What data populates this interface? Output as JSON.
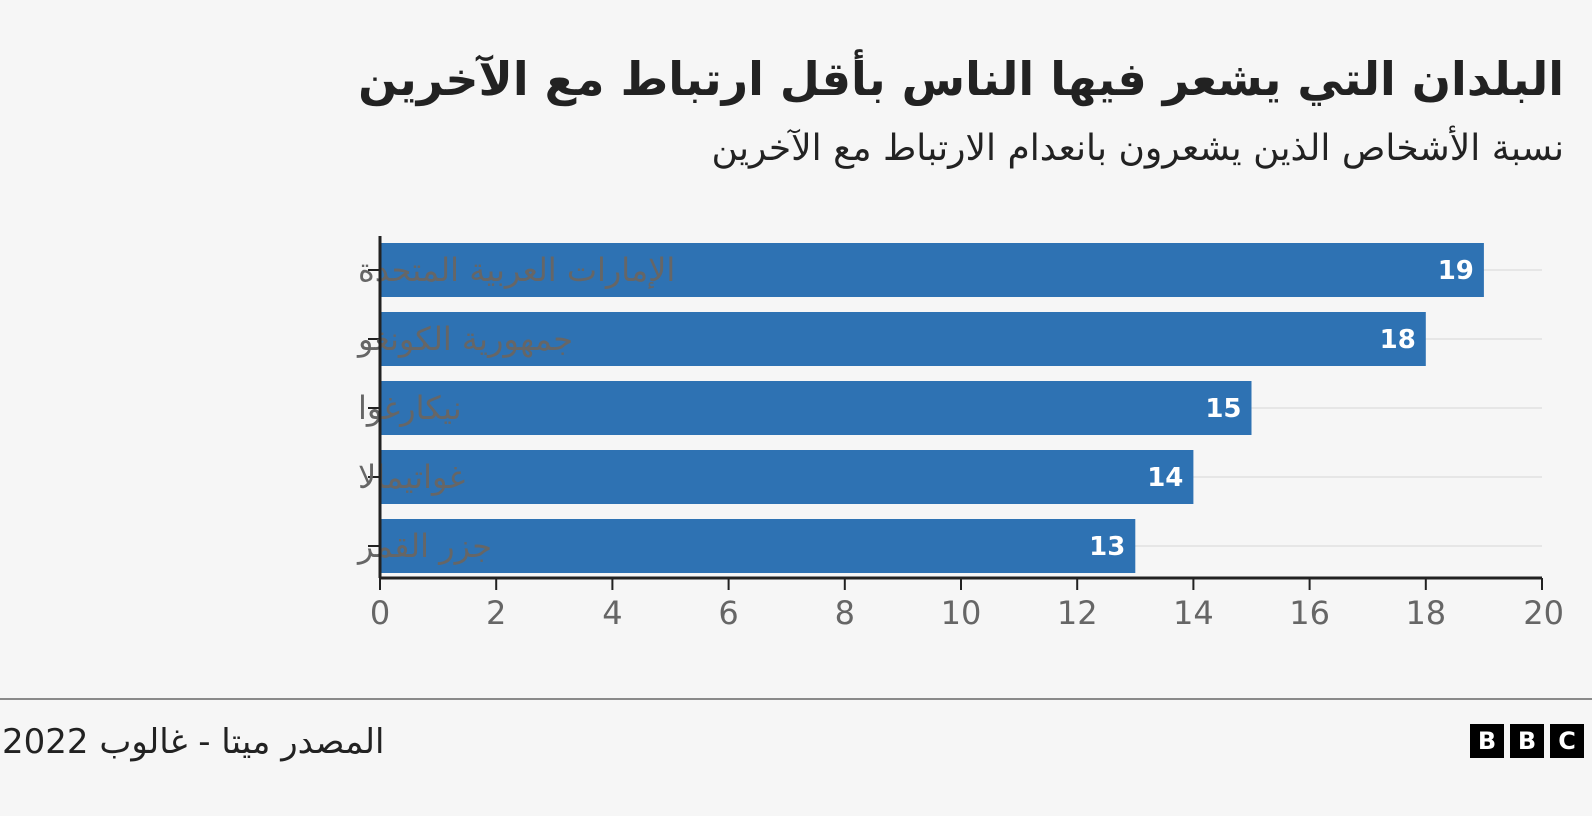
{
  "title": "البلدان التي يشعر فيها الناس بأقل ارتباط مع الآخرين",
  "subtitle": "نسبة الأشخاص الذين يشعرون بانعدام الارتباط مع الآخرين",
  "source": "المصدر ميتا - غالوب 2022",
  "logo": [
    "B",
    "B",
    "C"
  ],
  "colors": {
    "bar": "#2e72b3",
    "background": "#f6f6f6",
    "axis": "#222222",
    "grid": "#e6e6e6"
  },
  "chart_data": {
    "type": "bar",
    "orientation": "horizontal",
    "categories": [
      "الإمارات العربية المتحدة",
      "جمهورية الكونغو",
      "نيكارغوا",
      "غواتيمالا",
      "جزر القمر"
    ],
    "values": [
      19,
      18,
      15,
      14,
      13
    ],
    "data_labels": [
      "19",
      "18",
      "15",
      "14",
      "13"
    ],
    "xlim": [
      0,
      20
    ],
    "xticks": [
      0,
      2,
      4,
      6,
      8,
      10,
      12,
      14,
      16,
      18,
      20
    ],
    "grid": true
  }
}
